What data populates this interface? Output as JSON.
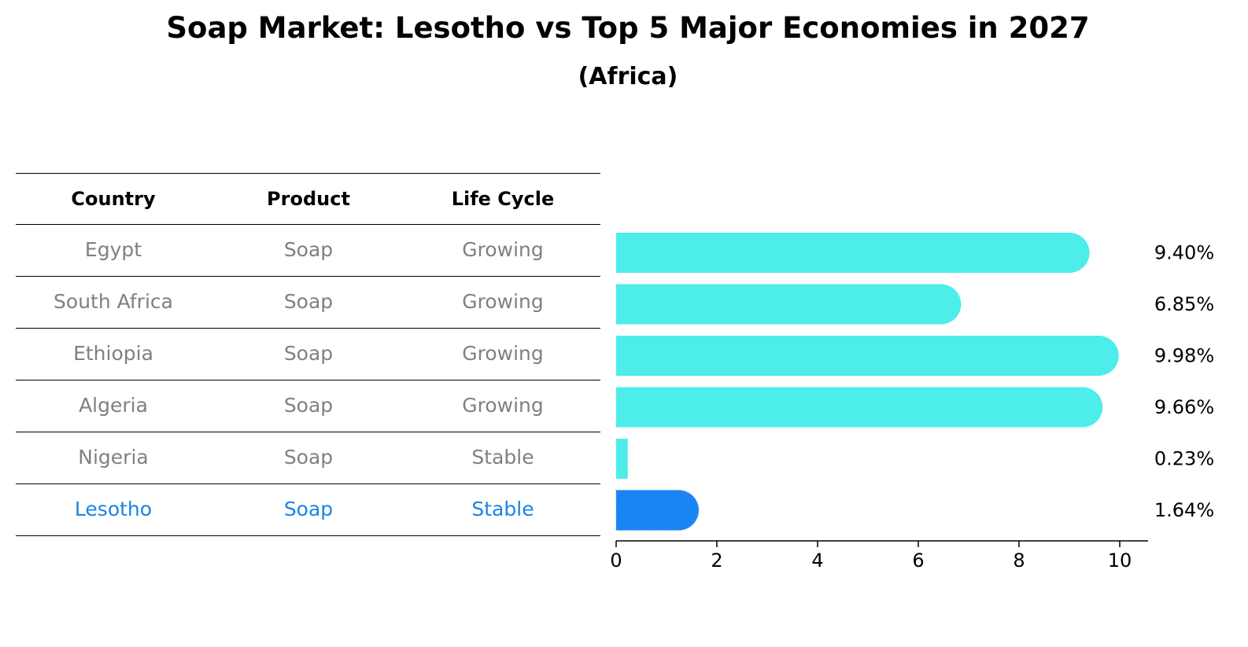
{
  "chart_data": {
    "type": "bar",
    "orientation": "horizontal",
    "title": "Soap Market: Lesotho vs Top 5 Major Economies in 2027",
    "subtitle": "(Africa)",
    "table": {
      "columns": [
        "Country",
        "Product",
        "Life Cycle"
      ],
      "rows": [
        [
          "Egypt",
          "Soap",
          "Growing"
        ],
        [
          "South Africa",
          "Soap",
          "Growing"
        ],
        [
          "Ethiopia",
          "Soap",
          "Growing"
        ],
        [
          "Algeria",
          "Soap",
          "Growing"
        ],
        [
          "Nigeria",
          "Soap",
          "Stable"
        ],
        [
          "Lesotho",
          "Soap",
          "Stable"
        ]
      ]
    },
    "categories": [
      "Egypt",
      "South Africa",
      "Ethiopia",
      "Algeria",
      "Nigeria",
      "Lesotho"
    ],
    "values": [
      9.4,
      6.85,
      9.98,
      9.66,
      0.23,
      1.64
    ],
    "value_labels": [
      "9.40%",
      "6.85%",
      "9.98%",
      "9.66%",
      "0.23%",
      "1.64%"
    ],
    "highlight": "Lesotho",
    "xlim": [
      0,
      10.5
    ],
    "xticks": [
      0,
      2,
      4,
      6,
      8,
      10
    ],
    "xlabel": "",
    "ylabel": "",
    "colors": {
      "default": "#4DEDEA",
      "highlight": "#1A84F5",
      "highlight_text": "#1A84E6",
      "muted_text": "#808080"
    }
  }
}
